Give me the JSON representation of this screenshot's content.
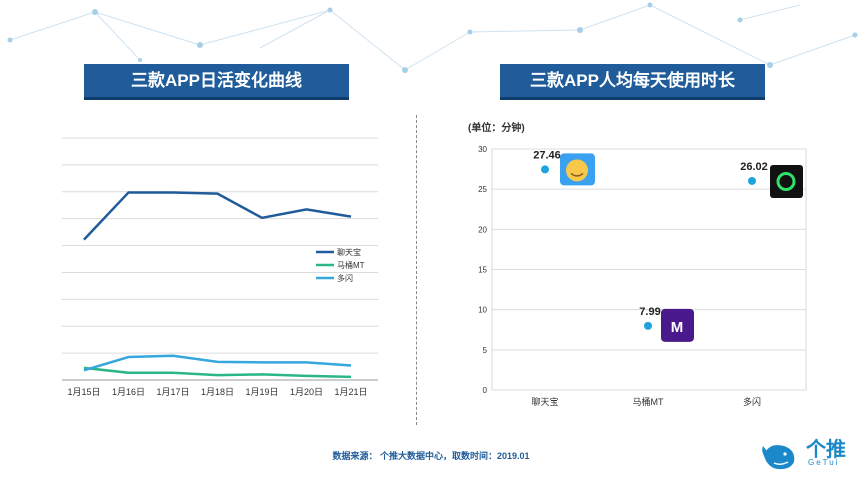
{
  "left_title": "三款APP日活变化曲线",
  "right_title": "三款APP人均每天使用时长",
  "footer": "数据来源： 个推大数据中心，取数时间：2019.01",
  "brand": {
    "name": "个推",
    "sub": "GeTui"
  },
  "colors": {
    "title_bg": "#1f5c99",
    "series1": "#1f5c99",
    "series2": "#2bb58a",
    "series3": "#35a7dc",
    "dot": "#1fa3e0"
  },
  "chart_data": [
    {
      "type": "line",
      "title": "三款APP日活变化曲线",
      "categories": [
        "1月15日",
        "1月16日",
        "1月17日",
        "1月18日",
        "1月19日",
        "1月20日",
        "1月21日"
      ],
      "ylim": [
        0,
        100
      ],
      "series": [
        {
          "name": "聊天宝",
          "values": [
            58,
            77.5,
            77.5,
            77,
            67,
            70.5,
            67.5
          ]
        },
        {
          "name": "马桶MT",
          "values": [
            5,
            3,
            3,
            2,
            2.3,
            1.7,
            1.3
          ]
        },
        {
          "name": "多闪",
          "values": [
            4,
            9.5,
            10,
            7.5,
            7.3,
            7.3,
            6
          ]
        }
      ],
      "legend": "right"
    },
    {
      "type": "scatter",
      "title": "三款APP人均每天使用时长",
      "unit_label": "(单位：分钟)",
      "categories": [
        "聊天宝",
        "马桶MT",
        "多闪"
      ],
      "values": [
        27.46,
        7.99,
        26.02
      ],
      "labels": [
        "27.46",
        "7.99",
        "26.02"
      ],
      "ylim": [
        0,
        30
      ],
      "yticks": [
        0,
        5,
        10,
        15,
        20,
        25,
        30
      ]
    }
  ]
}
